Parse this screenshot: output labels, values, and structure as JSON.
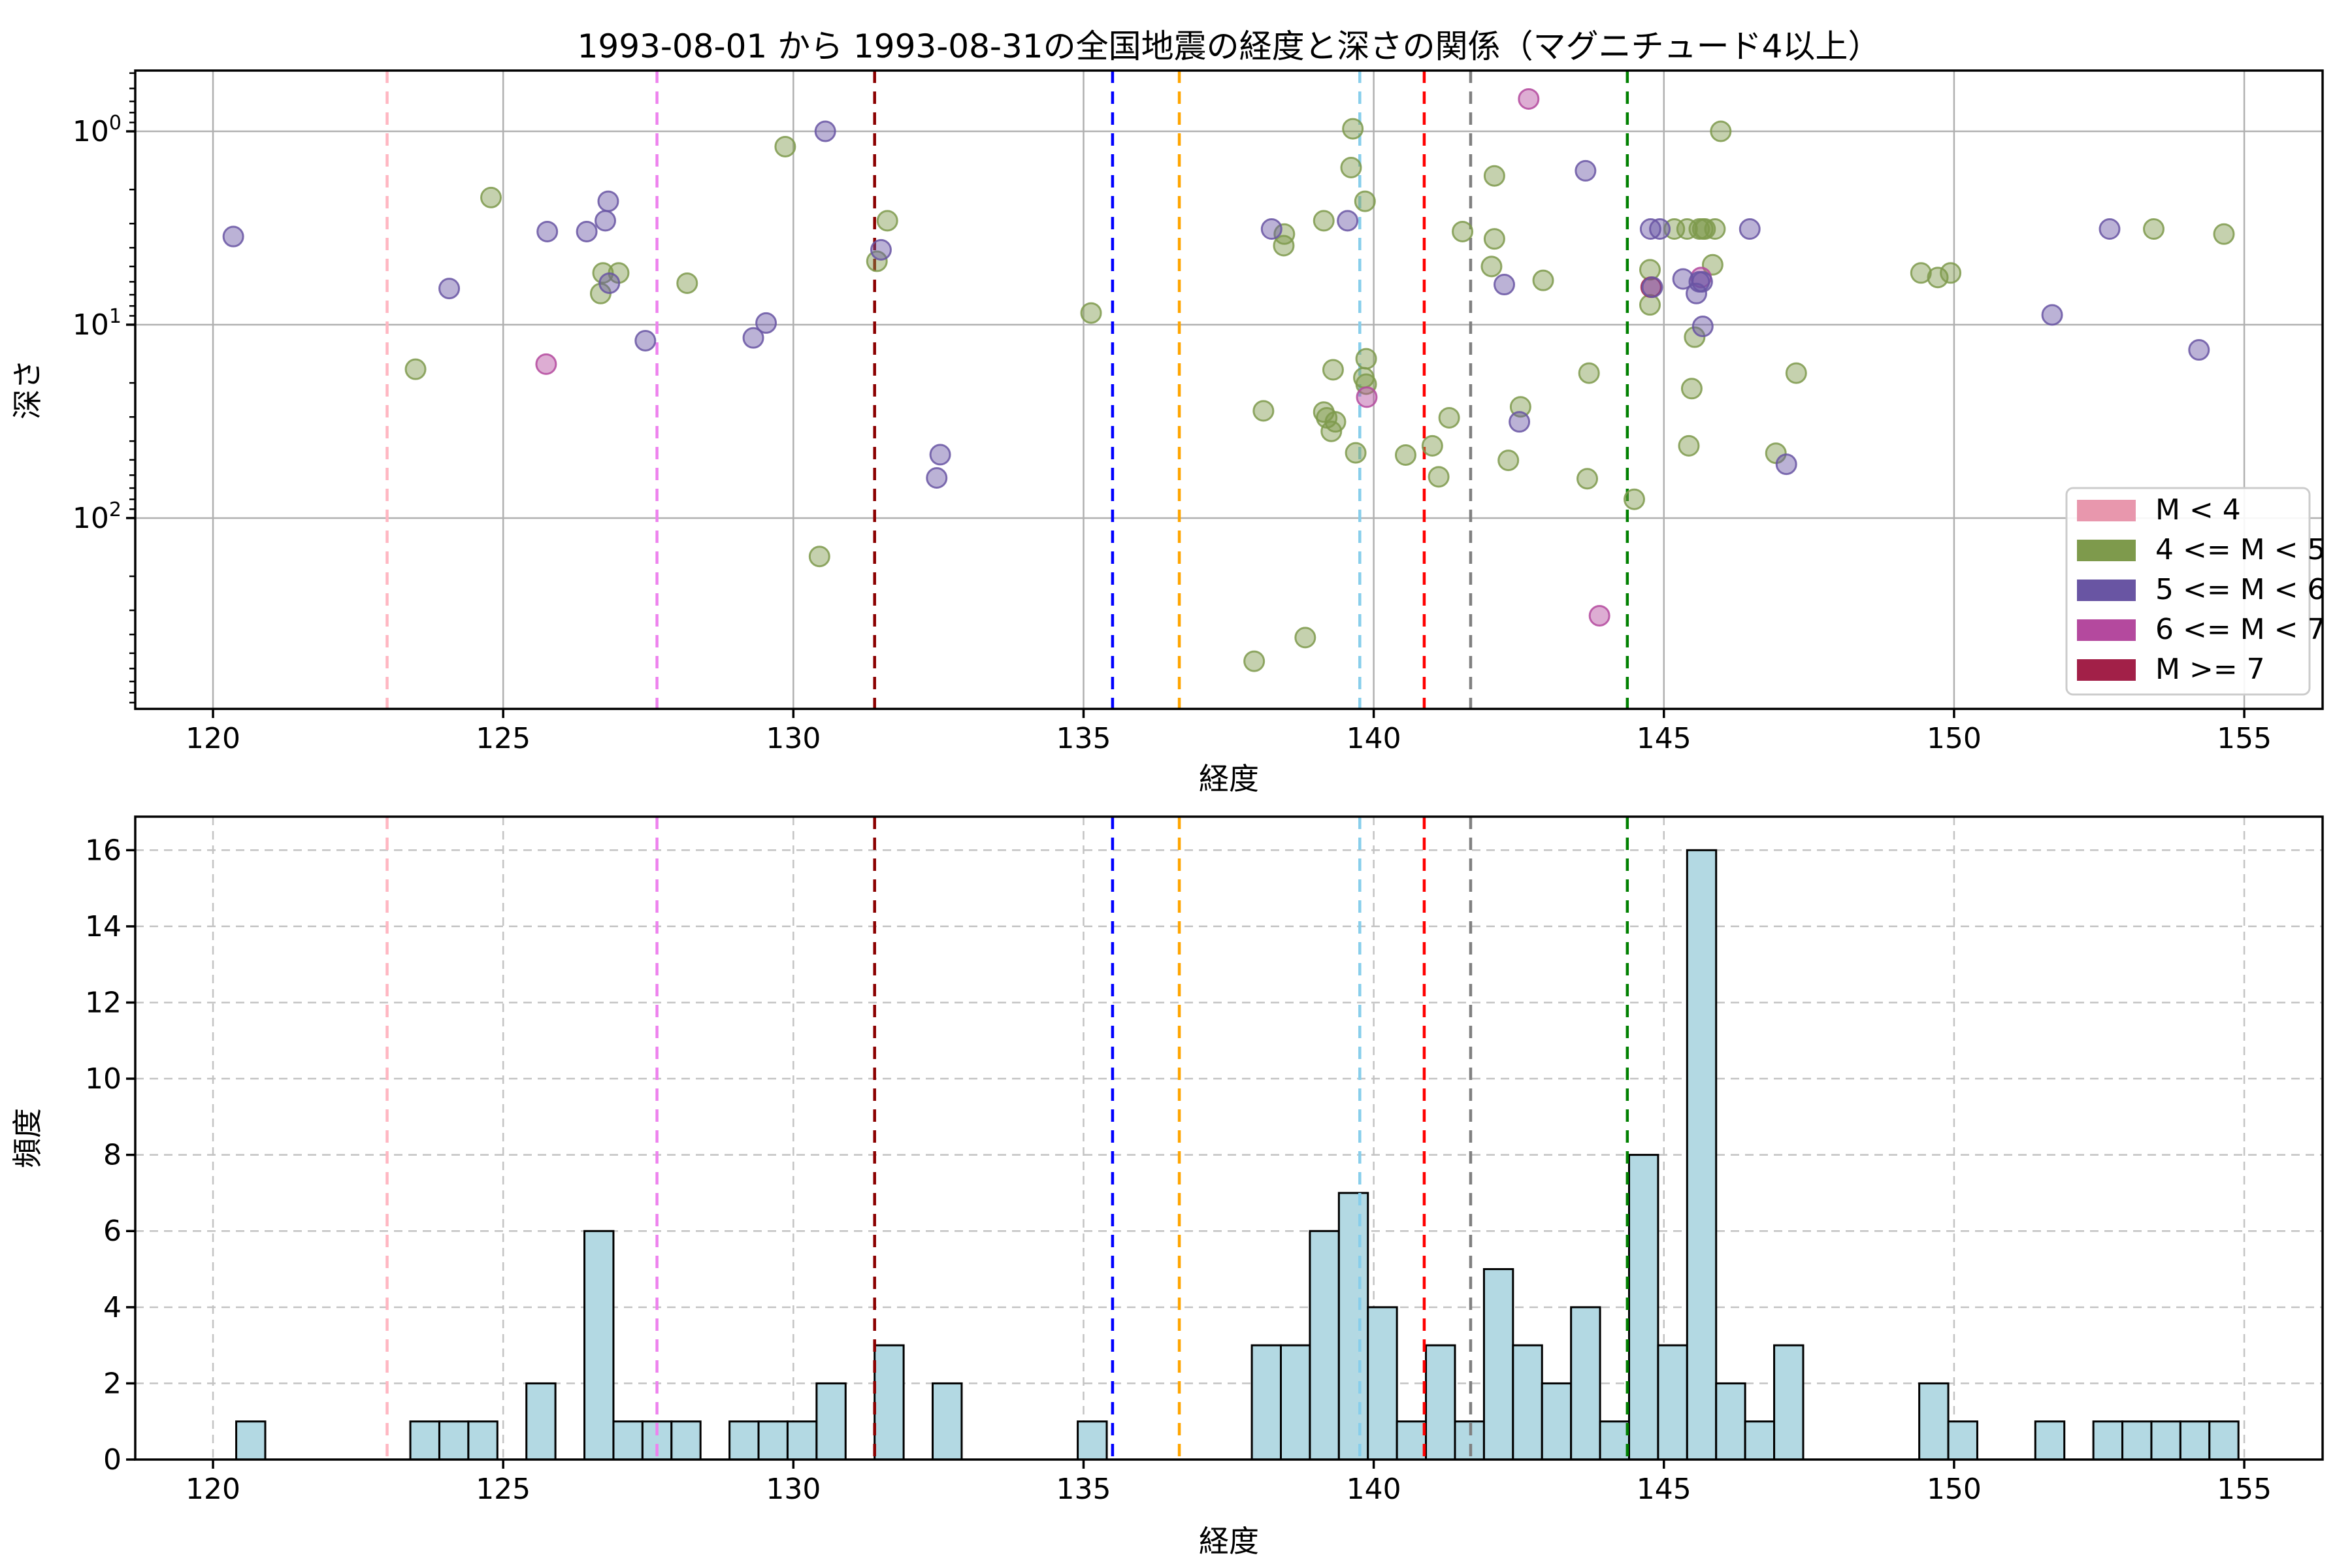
{
  "title": "1993-08-01 から 1993-08-31の全国地震の経度と深さの関係（マグニチュード4以上）",
  "chart_data": [
    {
      "type": "scatter",
      "xlabel": "経度",
      "ylabel": "深さ",
      "xlim": [
        118.66,
        156.35
      ],
      "yscale": "log",
      "y_inverted": true,
      "ylim": [
        0.485,
        970
      ],
      "x_ticks": [
        120,
        125,
        130,
        135,
        140,
        145,
        150,
        155
      ],
      "y_ticks": [
        1,
        10,
        100
      ],
      "grid": "solid",
      "legend_position": "lower right",
      "series": [
        {
          "name": "M < 4",
          "color": "#e897ad",
          "points": []
        },
        {
          "name": "4 <= M < 5",
          "color": "#7e9a4c",
          "points": [
            [
              124.79,
              2.2
            ],
            [
              126.72,
              5.4
            ],
            [
              126.99,
              5.4
            ],
            [
              126.68,
              6.9
            ],
            [
              123.49,
              17
            ],
            [
              128.17,
              6.1
            ],
            [
              129.86,
              1.2
            ],
            [
              131.62,
              2.9
            ],
            [
              131.44,
              4.7
            ],
            [
              130.45,
              158
            ],
            [
              135.13,
              8.7
            ],
            [
              139.64,
              0.97
            ],
            [
              139.61,
              1.54
            ],
            [
              139.85,
              2.3
            ],
            [
              138.46,
              3.4
            ],
            [
              138.45,
              3.9
            ],
            [
              139.14,
              2.9
            ],
            [
              142.08,
              1.7
            ],
            [
              141.53,
              3.3
            ],
            [
              142.08,
              3.6
            ],
            [
              142.03,
              5.0
            ],
            [
              142.92,
              5.9
            ],
            [
              139.87,
              15
            ],
            [
              139.3,
              17.1
            ],
            [
              139.83,
              18.8
            ],
            [
              139.87,
              20.3
            ],
            [
              138.1,
              27.9
            ],
            [
              139.14,
              28.3
            ],
            [
              139.19,
              30.3
            ],
            [
              139.34,
              31.8
            ],
            [
              139.27,
              35.6
            ],
            [
              139.69,
              46
            ],
            [
              140.55,
              47.2
            ],
            [
              141.01,
              42.3
            ],
            [
              141.3,
              30.3
            ],
            [
              141.12,
              61.2
            ],
            [
              142.53,
              26.6
            ],
            [
              142.32,
              50.3
            ],
            [
              138.82,
              415
            ],
            [
              137.94,
              550
            ],
            [
              145.98,
              1.0
            ],
            [
              145.18,
              3.2
            ],
            [
              145.4,
              3.2
            ],
            [
              145.61,
              3.2
            ],
            [
              145.67,
              3.2
            ],
            [
              145.71,
              3.2
            ],
            [
              145.88,
              3.2
            ],
            [
              153.44,
              3.2
            ],
            [
              154.65,
              3.4
            ],
            [
              144.76,
              5.2
            ],
            [
              145.84,
              4.9
            ],
            [
              144.76,
              7.9
            ],
            [
              145.53,
              11.6
            ],
            [
              149.43,
              5.4
            ],
            [
              149.72,
              5.7
            ],
            [
              149.94,
              5.4
            ],
            [
              143.71,
              17.8
            ],
            [
              145.48,
              21.4
            ],
            [
              147.28,
              17.8
            ],
            [
              145.43,
              42.3
            ],
            [
              146.93,
              46.2
            ],
            [
              143.68,
              62.6
            ],
            [
              144.49,
              80
            ]
          ]
        },
        {
          "name": "5 <= M < 6",
          "color": "#6955a3",
          "points": [
            [
              120.35,
              3.5
            ],
            [
              125.76,
              3.3
            ],
            [
              126.44,
              3.3
            ],
            [
              126.81,
              2.3
            ],
            [
              126.76,
              2.9
            ],
            [
              126.83,
              6.1
            ],
            [
              124.07,
              6.5
            ],
            [
              127.45,
              12.1
            ],
            [
              129.31,
              11.7
            ],
            [
              129.53,
              9.8
            ],
            [
              130.55,
              1.0
            ],
            [
              131.51,
              4.1
            ],
            [
              132.53,
              47
            ],
            [
              132.47,
              62
            ],
            [
              139.55,
              2.9
            ],
            [
              138.24,
              3.2
            ],
            [
              142.25,
              6.2
            ],
            [
              142.51,
              31.8
            ],
            [
              143.65,
              1.6
            ],
            [
              144.77,
              3.2
            ],
            [
              144.93,
              3.2
            ],
            [
              146.48,
              3.2
            ],
            [
              152.68,
              3.2
            ],
            [
              144.8,
              6.4
            ],
            [
              145.33,
              5.8
            ],
            [
              145.61,
              6.0
            ],
            [
              145.66,
              6.0
            ],
            [
              145.56,
              6.9
            ],
            [
              145.67,
              10.2
            ],
            [
              151.69,
              8.9
            ],
            [
              154.22,
              13.5
            ],
            [
              147.11,
              52.7
            ]
          ]
        },
        {
          "name": "6 <= M < 7",
          "color": "#b4499e",
          "points": [
            [
              125.74,
              16
            ],
            [
              142.67,
              0.68
            ],
            [
              139.88,
              23.7
            ],
            [
              145.64,
              5.7
            ],
            [
              143.89,
              320
            ]
          ]
        },
        {
          "name": "M >= 7",
          "color": "#a22048",
          "points": [
            [
              144.78,
              6.4
            ]
          ]
        }
      ]
    },
    {
      "type": "bar",
      "xlabel": "経度",
      "ylabel": "頻度",
      "xlim": [
        118.66,
        156.35
      ],
      "ylim": [
        0,
        16.88
      ],
      "x_ticks": [
        120,
        125,
        130,
        135,
        140,
        145,
        150,
        155
      ],
      "y_ticks": [
        0,
        2,
        4,
        6,
        8,
        10,
        12,
        14,
        16
      ],
      "grid": "dashed",
      "bar_color": "#b3d9e3",
      "bar_edge_color": "#000000",
      "bin_width": 0.5,
      "bars": [
        [
          120.4,
          1
        ],
        [
          123.4,
          1
        ],
        [
          123.9,
          1
        ],
        [
          124.4,
          1
        ],
        [
          125.4,
          2
        ],
        [
          126.4,
          6
        ],
        [
          126.9,
          1
        ],
        [
          127.4,
          1
        ],
        [
          127.9,
          1
        ],
        [
          128.9,
          1
        ],
        [
          129.4,
          1
        ],
        [
          129.9,
          1
        ],
        [
          130.4,
          2
        ],
        [
          131.4,
          3
        ],
        [
          132.4,
          2
        ],
        [
          134.9,
          1
        ],
        [
          137.9,
          3
        ],
        [
          138.4,
          3
        ],
        [
          138.9,
          6
        ],
        [
          139.4,
          7
        ],
        [
          139.9,
          4
        ],
        [
          140.4,
          1
        ],
        [
          140.9,
          3
        ],
        [
          141.4,
          1
        ],
        [
          141.9,
          5
        ],
        [
          142.4,
          3
        ],
        [
          142.9,
          2
        ],
        [
          143.4,
          4
        ],
        [
          143.9,
          1
        ],
        [
          144.4,
          8
        ],
        [
          144.9,
          3
        ],
        [
          145.4,
          16
        ],
        [
          145.9,
          2
        ],
        [
          146.4,
          1
        ],
        [
          146.9,
          3
        ],
        [
          149.4,
          2
        ],
        [
          149.9,
          1
        ],
        [
          151.4,
          1
        ],
        [
          152.4,
          1
        ],
        [
          152.9,
          1
        ],
        [
          153.4,
          1
        ],
        [
          153.9,
          1
        ],
        [
          154.4,
          1
        ]
      ]
    }
  ],
  "vlines": [
    {
      "lon": 123.0,
      "color": "#ffb6c1"
    },
    {
      "lon": 127.65,
      "color": "#ee82ee"
    },
    {
      "lon": 131.4,
      "color": "#8b0000"
    },
    {
      "lon": 135.5,
      "color": "#0000ff"
    },
    {
      "lon": 136.65,
      "color": "#ffa500"
    },
    {
      "lon": 139.76,
      "color": "#87ceeb"
    },
    {
      "lon": 140.87,
      "color": "#ff0000"
    },
    {
      "lon": 141.67,
      "color": "#808080"
    },
    {
      "lon": 144.37,
      "color": "#008000"
    }
  ]
}
